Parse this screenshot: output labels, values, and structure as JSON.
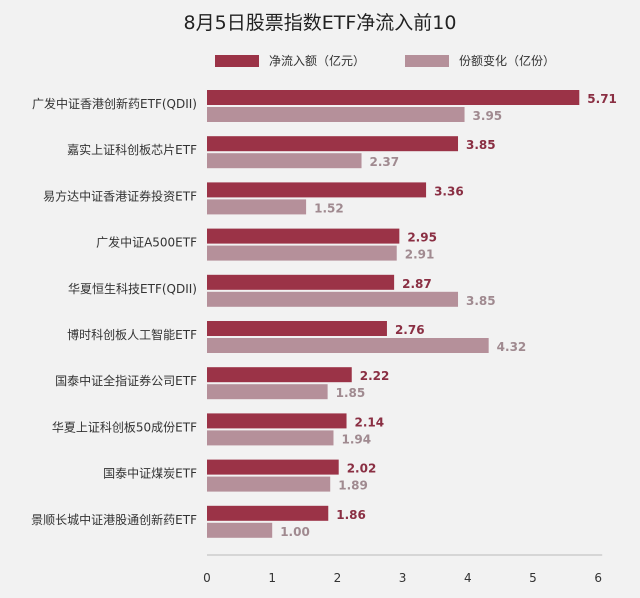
{
  "chart_data": {
    "type": "bar",
    "orientation": "horizontal",
    "title": "8月5日股票指数ETF净流入前10",
    "categories": [
      "广发中证香港创新药ETF(QDII)",
      "嘉实上证科创板芯片ETF",
      "易方达中证香港证券投资ETF",
      "广发中证A500ETF",
      "华夏恒生科技ETF(QDII)",
      "博时科创板人工智能ETF",
      "国泰中证全指证券公司ETF",
      "华夏上证科创板50成份ETF",
      "国泰中证煤炭ETF",
      "景顺长城中证港股通创新药ETF"
    ],
    "series": [
      {
        "name": "净流入额（亿元）",
        "values": [
          5.71,
          3.85,
          3.36,
          2.95,
          2.87,
          2.76,
          2.22,
          2.14,
          2.02,
          1.86
        ],
        "color": "#9b3347",
        "label_color": "#8a2f43"
      },
      {
        "name": "份额变化（亿份）",
        "values": [
          3.95,
          2.37,
          1.52,
          2.91,
          3.85,
          4.32,
          1.85,
          1.94,
          1.89,
          1.0
        ],
        "color": "#b5909a",
        "label_color": "#a08a90"
      }
    ],
    "xlim": [
      0,
      6
    ],
    "xticks": [
      "0",
      "1",
      "2",
      "3",
      "4",
      "5",
      "6"
    ],
    "grid": false,
    "legend_position": "top"
  }
}
